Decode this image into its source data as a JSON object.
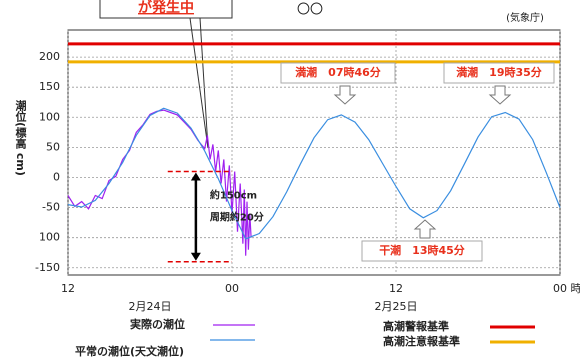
{
  "chart_data": {
    "type": "line",
    "alert": "が発生中",
    "title": "〇〇",
    "source": "(気象庁)",
    "y_label": "潮位(標高 cm)",
    "xlim": [
      0,
      36
    ],
    "xticks": [
      {
        "value": 0,
        "label": "12"
      },
      {
        "value": 12,
        "label": "00"
      },
      {
        "value": 24,
        "label": "12"
      },
      {
        "value": 36,
        "label": "00 時"
      }
    ],
    "dates": [
      {
        "value": 6,
        "label": "2月24日"
      },
      {
        "value": 24,
        "label": "2月25日"
      }
    ],
    "ylim": [
      -162,
      245
    ],
    "yticks": [
      200,
      150,
      100,
      50,
      0,
      -50,
      {
        "value": -100,
        "label": "100"
      },
      -150
    ],
    "grid": true,
    "series": [
      {
        "name": "実際の潮位",
        "color": "#a020f0",
        "x": [
          0,
          0.5,
          1,
          1.5,
          2,
          2.5,
          3,
          3.5,
          4,
          4.5,
          5,
          5.5,
          6,
          6.5,
          7,
          7.5,
          8,
          8.5,
          9,
          9.5,
          10,
          10.2,
          10.4,
          10.6,
          10.8,
          11,
          11.2,
          11.4,
          11.6,
          11.8,
          12,
          12.2,
          12.4,
          12.6,
          12.8,
          12.9,
          13,
          13.1,
          13.2,
          13.3,
          13.4
        ],
        "values": [
          -30,
          -48,
          -40,
          -52,
          -30,
          -35,
          -5,
          2,
          30,
          45,
          75,
          88,
          105,
          110,
          112,
          108,
          104,
          92,
          80,
          62,
          48,
          70,
          30,
          55,
          10,
          45,
          -10,
          30,
          -40,
          20,
          -60,
          10,
          -90,
          -10,
          -110,
          -20,
          -130,
          -40,
          -120,
          -60,
          -100
        ]
      },
      {
        "name": "平常の潮位(天文潮位)",
        "color": "#3a8ee0",
        "x": [
          0,
          1,
          2,
          3,
          4,
          5,
          6,
          7,
          8,
          9,
          10,
          11,
          12,
          13,
          14,
          15,
          16,
          17,
          18,
          19,
          20,
          21,
          22,
          23,
          24,
          25,
          26,
          27,
          28,
          29,
          30,
          31,
          32,
          33,
          34,
          35,
          36
        ],
        "values": [
          -45,
          -49,
          -38,
          -10,
          25,
          70,
          103,
          115,
          107,
          82,
          44,
          -2,
          -55,
          -102,
          -93,
          -65,
          -24,
          22,
          66,
          96,
          104,
          92,
          63,
          24,
          -15,
          -52,
          -67,
          -55,
          -22,
          22,
          67,
          101,
          108,
          97,
          63,
          8,
          -50
        ]
      }
    ],
    "thresholds": [
      {
        "name": "高潮警報基準",
        "value": 222,
        "color": "#e00000"
      },
      {
        "name": "高潮注意報基準",
        "value": 192,
        "color": "#f0b000"
      }
    ],
    "annotations": [
      "満潮　07時46分",
      "満潮　19時35分",
      "干潮　13時45分"
    ],
    "range_marker": {
      "top": 10,
      "bottom": -140,
      "x": [
        7.3,
        12
      ],
      "labels": [
        "約150cm",
        "周期約20分"
      ],
      "color": "#e00000"
    }
  }
}
